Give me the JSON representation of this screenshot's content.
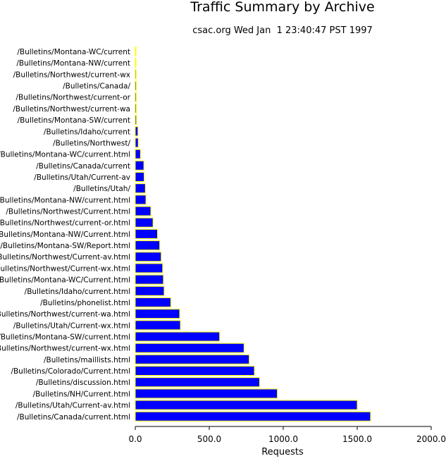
{
  "chart_data": {
    "type": "bar",
    "orientation": "horizontal",
    "title": "Traffic Summary by Archive",
    "subtitle": "csac.org Wed Jan  1 23:40:47 PST 1997",
    "xlabel": "Requests",
    "ylabel": "",
    "xlim": [
      0,
      2000
    ],
    "xticks": [
      "0.0",
      "500.0",
      "1000.0",
      "1500.0",
      "2000.0"
    ],
    "grid": false,
    "bar_color": "#0000ff",
    "bar_edge_color": "#ffff00",
    "categories": [
      "/Bulletins/Montana-WC/current",
      "/Bulletins/Montana-NW/current",
      "/Bulletins/Northwest/current-wx",
      "/Bulletins/Canada/",
      "/Bulletins/Northwest/current-or",
      "/Bulletins/Northwest/current-wa",
      "/Bulletins/Montana-SW/current",
      "/Bulletins/Idaho/current",
      "/Bulletins/Northwest/",
      "/Bulletins/Montana-WC/current.html",
      "/Bulletins/Canada/current",
      "/Bulletins/Utah/Current-av",
      "/Bulletins/Utah/",
      "/Bulletins/Montana-NW/current.html",
      "/Bulletins/Northwest/Current.html",
      "/Bulletins/Northwest/current-or.html",
      "/Bulletins/Montana-NW/Current.html",
      "/Bulletins/Montana-SW/Report.html",
      "/Bulletins/Northwest/Current-av.html",
      "/Bulletins/Northwest/Current-wx.html",
      "/Bulletins/Montana-WC/Current.html",
      "/Bulletins/Idaho/current.html",
      "/Bulletins/phonelist.html",
      "/Bulletins/Northwest/current-wa.html",
      "/Bulletins/Utah/Current-wx.html",
      "/Bulletins/Montana-SW/current.html",
      "/Bulletins/Northwest/current-wx.html",
      "/Bulletins/maillists.html",
      "/Bulletins/Colorado/Current.html",
      "/Bulletins/discussion.html",
      "/Bulletins/NH/Current.html",
      "/Bulletins/Utah/Current-av.html",
      "/Bulletins/Canada/current.html"
    ],
    "values": [
      2,
      4,
      6,
      7,
      7,
      7,
      8,
      18,
      20,
      35,
      58,
      60,
      68,
      72,
      105,
      120,
      150,
      165,
      175,
      185,
      190,
      195,
      240,
      300,
      305,
      570,
      735,
      770,
      805,
      840,
      960,
      1500,
      1590
    ]
  }
}
